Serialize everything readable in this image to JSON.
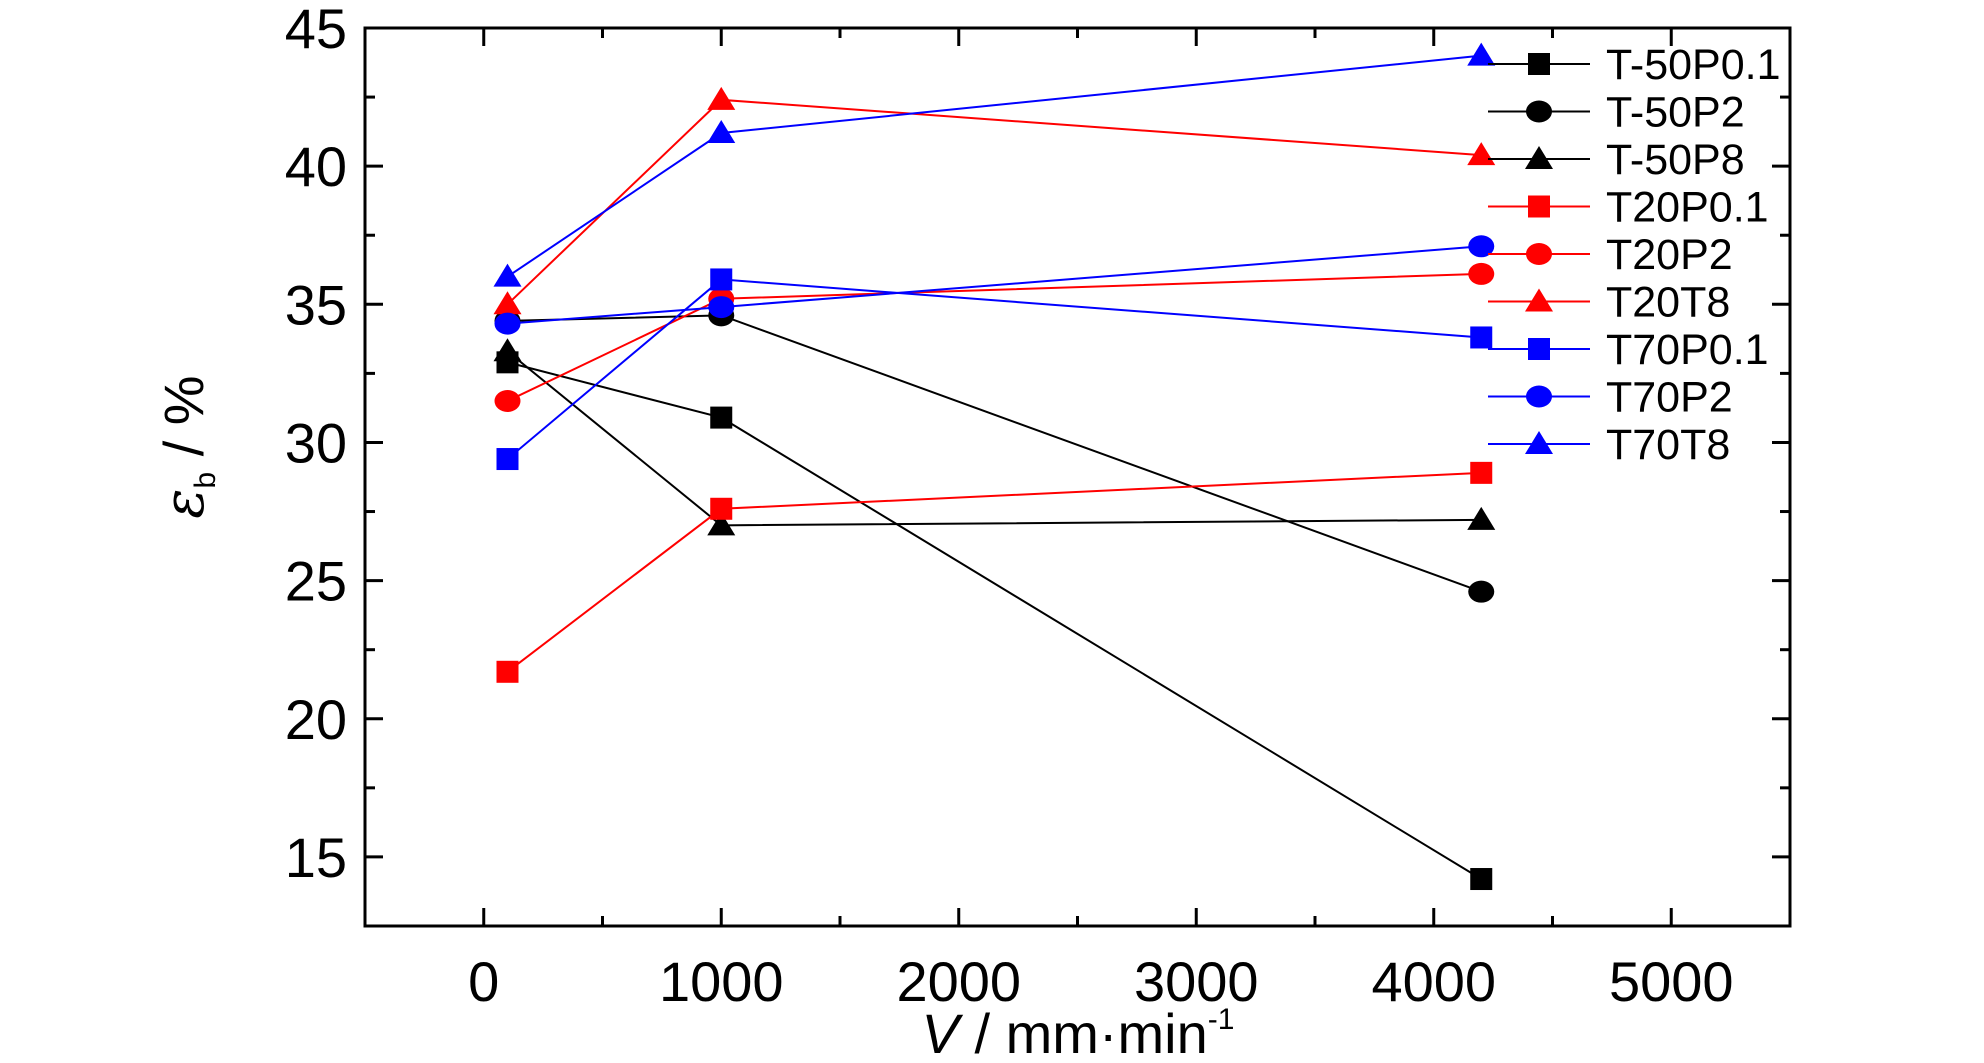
{
  "chart_data": {
    "type": "line",
    "title": "",
    "xlabel": {
      "var": "V",
      "unit": "mm·min",
      "exp": "-1"
    },
    "ylabel": {
      "var": "ε",
      "sub": "b",
      "unit": "%"
    },
    "xlim": [
      -500,
      5500
    ],
    "ylim": [
      12.5,
      45
    ],
    "x_ticks": [
      0,
      1000,
      2000,
      3000,
      4000,
      5000
    ],
    "x_tick_labels": [
      "0",
      "1000",
      "2000",
      "3000",
      "4000",
      "5000"
    ],
    "y_ticks": [
      15,
      20,
      25,
      30,
      35,
      40,
      45
    ],
    "y_tick_labels": [
      "15",
      "20",
      "25",
      "30",
      "35",
      "40",
      "45"
    ],
    "grid": false,
    "legend_position": "top-right",
    "x": [
      100,
      1000,
      4200
    ],
    "series": [
      {
        "name": "T-50P0.1",
        "color": "#000000",
        "marker": "square",
        "values": [
          32.9,
          30.9,
          14.2
        ]
      },
      {
        "name": "T-50P2",
        "color": "#000000",
        "marker": "circle",
        "values": [
          34.4,
          34.6,
          24.6
        ]
      },
      {
        "name": "T-50P8",
        "color": "#000000",
        "marker": "triangle",
        "values": [
          33.3,
          27.0,
          27.2
        ]
      },
      {
        "name": "T20P0.1",
        "color": "#ff0000",
        "marker": "square",
        "values": [
          21.7,
          27.6,
          28.9
        ]
      },
      {
        "name": "T20P2",
        "color": "#ff0000",
        "marker": "circle",
        "values": [
          31.5,
          35.2,
          36.1
        ]
      },
      {
        "name": "T20T8",
        "color": "#ff0000",
        "marker": "triangle",
        "values": [
          35.0,
          42.4,
          40.4
        ]
      },
      {
        "name": "T70P0.1",
        "color": "#0000ff",
        "marker": "square",
        "values": [
          29.4,
          35.9,
          33.8
        ]
      },
      {
        "name": "T70P2",
        "color": "#0000ff",
        "marker": "circle",
        "values": [
          34.3,
          34.9,
          37.1
        ]
      },
      {
        "name": "T70T8",
        "color": "#0000ff",
        "marker": "triangle",
        "values": [
          36.0,
          41.2,
          44.0
        ]
      }
    ]
  }
}
